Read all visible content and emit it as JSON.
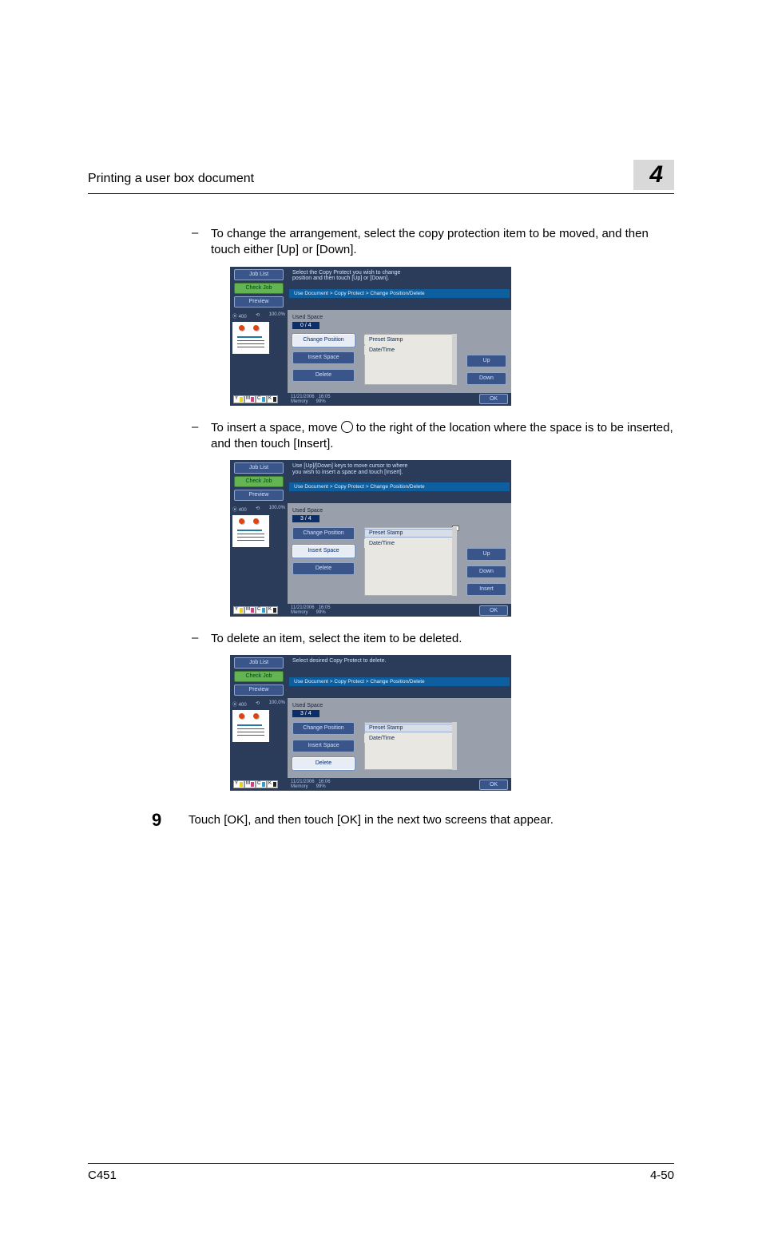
{
  "header": {
    "title": "Printing a user box document",
    "chapter": "4"
  },
  "bullets": {
    "b1": "To change the arrangement, select the copy protection item to be moved, and then touch either [Up] or [Down].",
    "b2a": "To insert a space, move ",
    "b2b": " to the right of the location where the space is to be inserted, and then touch [Insert].",
    "b3": "To delete an item, select the item to be deleted."
  },
  "step": {
    "num": "9",
    "text": "Touch [OK], and then touch [OK] in the next two screens that appear."
  },
  "footer": {
    "left": "C451",
    "right": "4-50"
  },
  "panel_common": {
    "joblist": "Job List",
    "check": "Check Job",
    "preview": "Preview",
    "breadcrumb": "Use Document > Copy Protect > Change Position/Delete",
    "zoom_left": "400",
    "rotate": "⟲",
    "zoom_pct": "100.0%",
    "used_space": "Used Space",
    "preset": "Preset Stamp",
    "datetime": "Date/Time",
    "change_pos": "Change Position",
    "insert_space": "Insert Space",
    "delete": "Delete",
    "up": "Up",
    "down": "Down",
    "insert": "Insert",
    "ok": "OK",
    "mem_label": "Memory",
    "mem_val": "99%",
    "ymck": {
      "y": "Y",
      "m": "M",
      "c": "C",
      "k": "K"
    }
  },
  "panel1": {
    "instr": "Select the Copy Protect you wish to change\nposition and then touch [Up] or [Down].",
    "counter": "0  /  4",
    "date": "11/21/2006",
    "time": "16:05",
    "show_insert": false,
    "cursor": false,
    "sel": "change"
  },
  "panel2": {
    "instr": "Use [Up]/[Down] keys to move cursor to where\nyou wish to insert a space and touch [Insert].",
    "counter": "3  /  4",
    "date": "11/21/2006",
    "time": "16:05",
    "show_insert": true,
    "cursor": true,
    "sel": "insert"
  },
  "panel3": {
    "instr": "Select desired Copy Protect to delete.",
    "counter": "3  /  4",
    "date": "11/21/2006",
    "time": "16:06",
    "show_insert": false,
    "cursor": false,
    "sel": "delete"
  }
}
